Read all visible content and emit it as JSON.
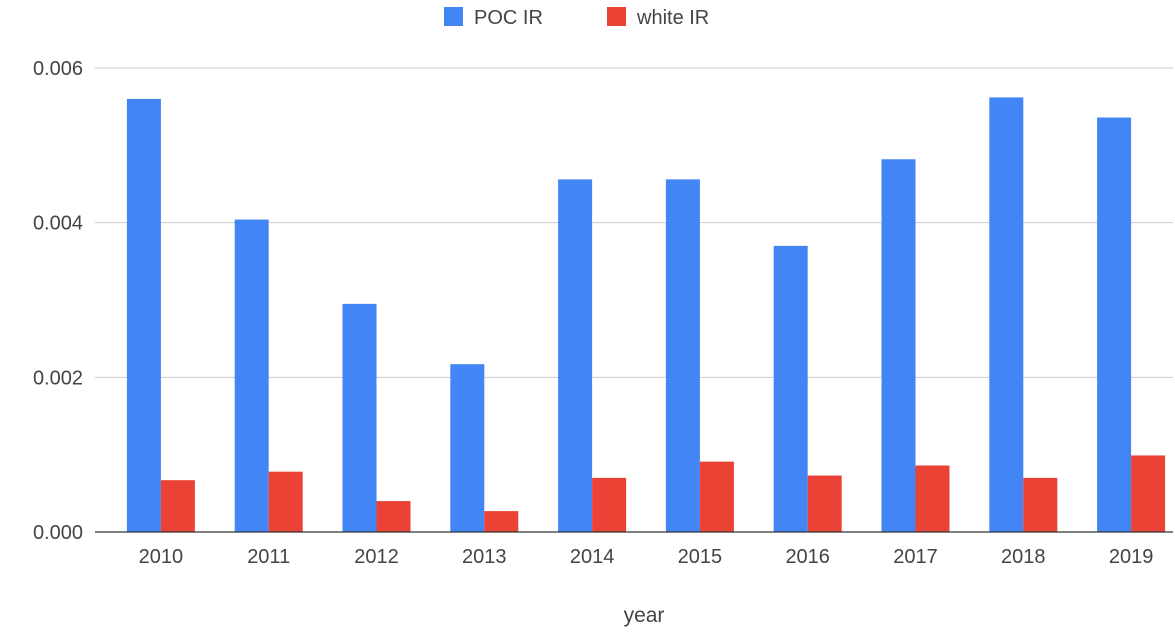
{
  "chart_data": {
    "type": "bar",
    "title": "",
    "xlabel": "year",
    "ylabel": "",
    "categories": [
      "2010",
      "2011",
      "2012",
      "2013",
      "2014",
      "2015",
      "2016",
      "2017",
      "2018",
      "2019"
    ],
    "series": [
      {
        "name": "POC IR",
        "color": "#4285f4",
        "values": [
          0.0056,
          0.00404,
          0.00295,
          0.00217,
          0.00456,
          0.00456,
          0.0037,
          0.00482,
          0.00562,
          0.00536
        ]
      },
      {
        "name": "white IR",
        "color": "#ea4335",
        "values": [
          0.00067,
          0.00078,
          0.0004,
          0.00027,
          0.0007,
          0.00091,
          0.00073,
          0.00086,
          0.0007,
          0.00099
        ]
      }
    ],
    "ylim": [
      0,
      0.006
    ],
    "yticks": [
      "0.000",
      "0.002",
      "0.004",
      "0.006"
    ],
    "grid": true,
    "legend_position": "top"
  }
}
